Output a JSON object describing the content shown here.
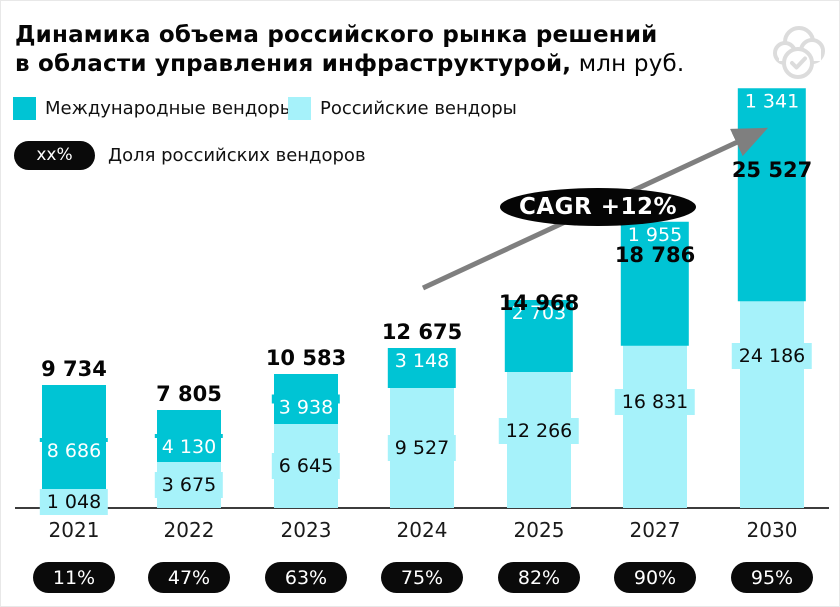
{
  "title": {
    "line1": "Динамика объема российского рынка решений",
    "line2_bold": "в области управления инфраструктурой,",
    "line2_regular": " млн руб."
  },
  "legend": [
    {
      "label": "Международные вендоры",
      "color": "#00C4D4"
    },
    {
      "label": "Российские вендоры",
      "color": "#A6F2FA"
    }
  ],
  "share_legend": {
    "badge": "xx%",
    "label": "Доля российских вендоров"
  },
  "icons": {
    "top_right": "cloud-check-icon"
  },
  "colors": {
    "international": "#00C4D4",
    "russian": "#A6F2FA",
    "pill": "#0a0a0a",
    "arrow": "#7f7f7f",
    "axis": "#3c3c3c"
  },
  "chart_data": {
    "type": "bar",
    "stacked": true,
    "title": "Динамика объема российского рынка решений в области управления инфраструктурой, млн руб.",
    "categories": [
      "2021",
      "2022",
      "2023",
      "2024",
      "2025",
      "2027",
      "2030"
    ],
    "series": [
      {
        "name": "Международные вендоры",
        "color": "#00C4D4",
        "values": [
          8686,
          4130,
          3938,
          3148,
          2703,
          1955,
          1341
        ],
        "labels": [
          "8 686",
          "4 130",
          "3 938",
          "3 148",
          "2 703",
          "1 955",
          "1 341"
        ],
        "label_text_color": "#ffffff"
      },
      {
        "name": "Российские вендоры",
        "color": "#A6F2FA",
        "values": [
          1048,
          3675,
          6645,
          9527,
          12266,
          16831,
          24186
        ],
        "labels": [
          "1 048",
          "3 675",
          "6 645",
          "9 527",
          "12 266",
          "16 831",
          "24 186"
        ],
        "label_text_color": "#0a0a0a"
      }
    ],
    "totals": [
      9734,
      7805,
      10583,
      12675,
      14968,
      18786,
      25527
    ],
    "total_labels": [
      "9 734",
      "7 805",
      "10 583",
      "12 675",
      "14 968",
      "18 786",
      "25 527"
    ],
    "russian_share": [
      "11%",
      "47%",
      "63%",
      "75%",
      "82%",
      "90%",
      "95%"
    ],
    "annotation": "CAGR +12%",
    "ylim": [
      0,
      26000
    ],
    "grid": false,
    "legend_position": "top-left"
  }
}
